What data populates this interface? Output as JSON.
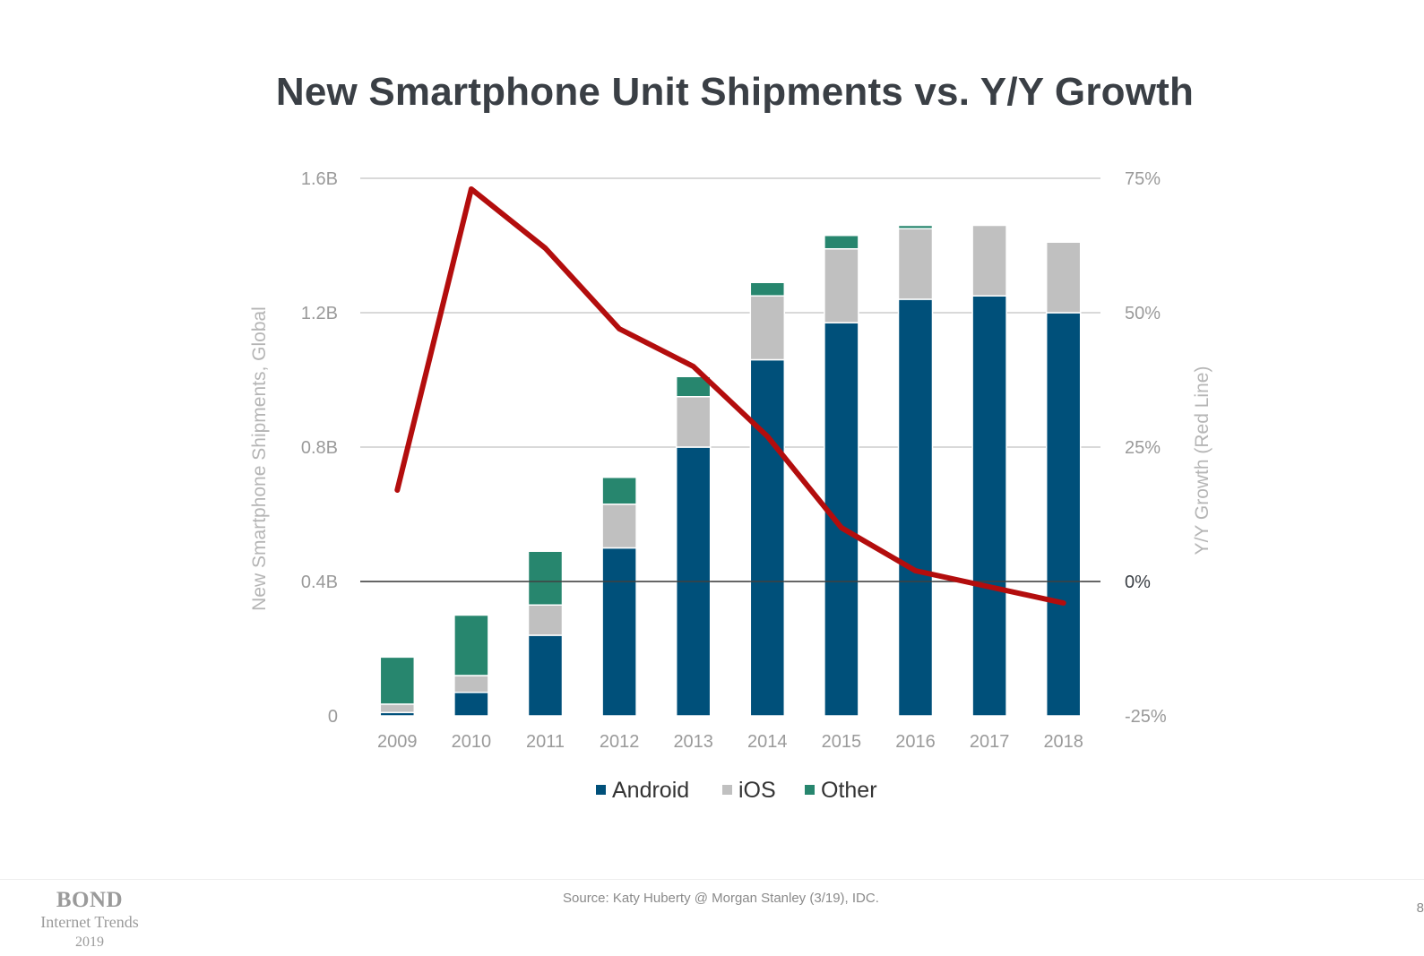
{
  "slide": {
    "title": "New Smartphone Unit Shipments vs. Y/Y Growth",
    "source": "Source: Katy Huberty @ Morgan Stanley (3/19), IDC.",
    "page_number": "8",
    "logo": {
      "brand": "BOND",
      "line2": "Internet Trends",
      "line3": "2019"
    }
  },
  "colors": {
    "android": "#00507a",
    "ios": "#c0c0c0",
    "other": "#27866e",
    "growth_line": "#b30d0d",
    "grid": "#d9d9d9",
    "zero_line": "#404040",
    "tick_text": "#9a9a9a",
    "title_text": "#3a3f45"
  },
  "chart_data": {
    "type": "bar",
    "stacked": true,
    "categories": [
      "2009",
      "2010",
      "2011",
      "2012",
      "2013",
      "2014",
      "2015",
      "2016",
      "2017",
      "2018"
    ],
    "series": [
      {
        "name": "Android",
        "values": [
          0.01,
          0.07,
          0.24,
          0.5,
          0.8,
          1.06,
          1.17,
          1.24,
          1.25,
          1.2
        ]
      },
      {
        "name": "iOS",
        "values": [
          0.025,
          0.05,
          0.09,
          0.13,
          0.15,
          0.19,
          0.22,
          0.21,
          0.21,
          0.21
        ]
      },
      {
        "name": "Other",
        "values": [
          0.14,
          0.18,
          0.16,
          0.08,
          0.06,
          0.04,
          0.04,
          0.01,
          0.0,
          0.0
        ]
      }
    ],
    "line_series": {
      "name": "Y/Y Growth",
      "axis": "right",
      "values": [
        17,
        73,
        62,
        47,
        40,
        27,
        10,
        2,
        -1,
        -4
      ]
    },
    "ylabel": "New Smartphone Shipments, Global",
    "y2label": "Y/Y Growth (Red Line)",
    "ylim": [
      0,
      1.6
    ],
    "y2lim": [
      -25,
      75
    ],
    "yticks": [
      "0",
      "0.4B",
      "0.8B",
      "1.2B",
      "1.6B"
    ],
    "y2ticks": [
      "-25%",
      "0%",
      "25%",
      "50%",
      "75%"
    ],
    "legend": [
      "Android",
      "iOS",
      "Other"
    ],
    "legend_position": "bottom",
    "grid": true
  }
}
